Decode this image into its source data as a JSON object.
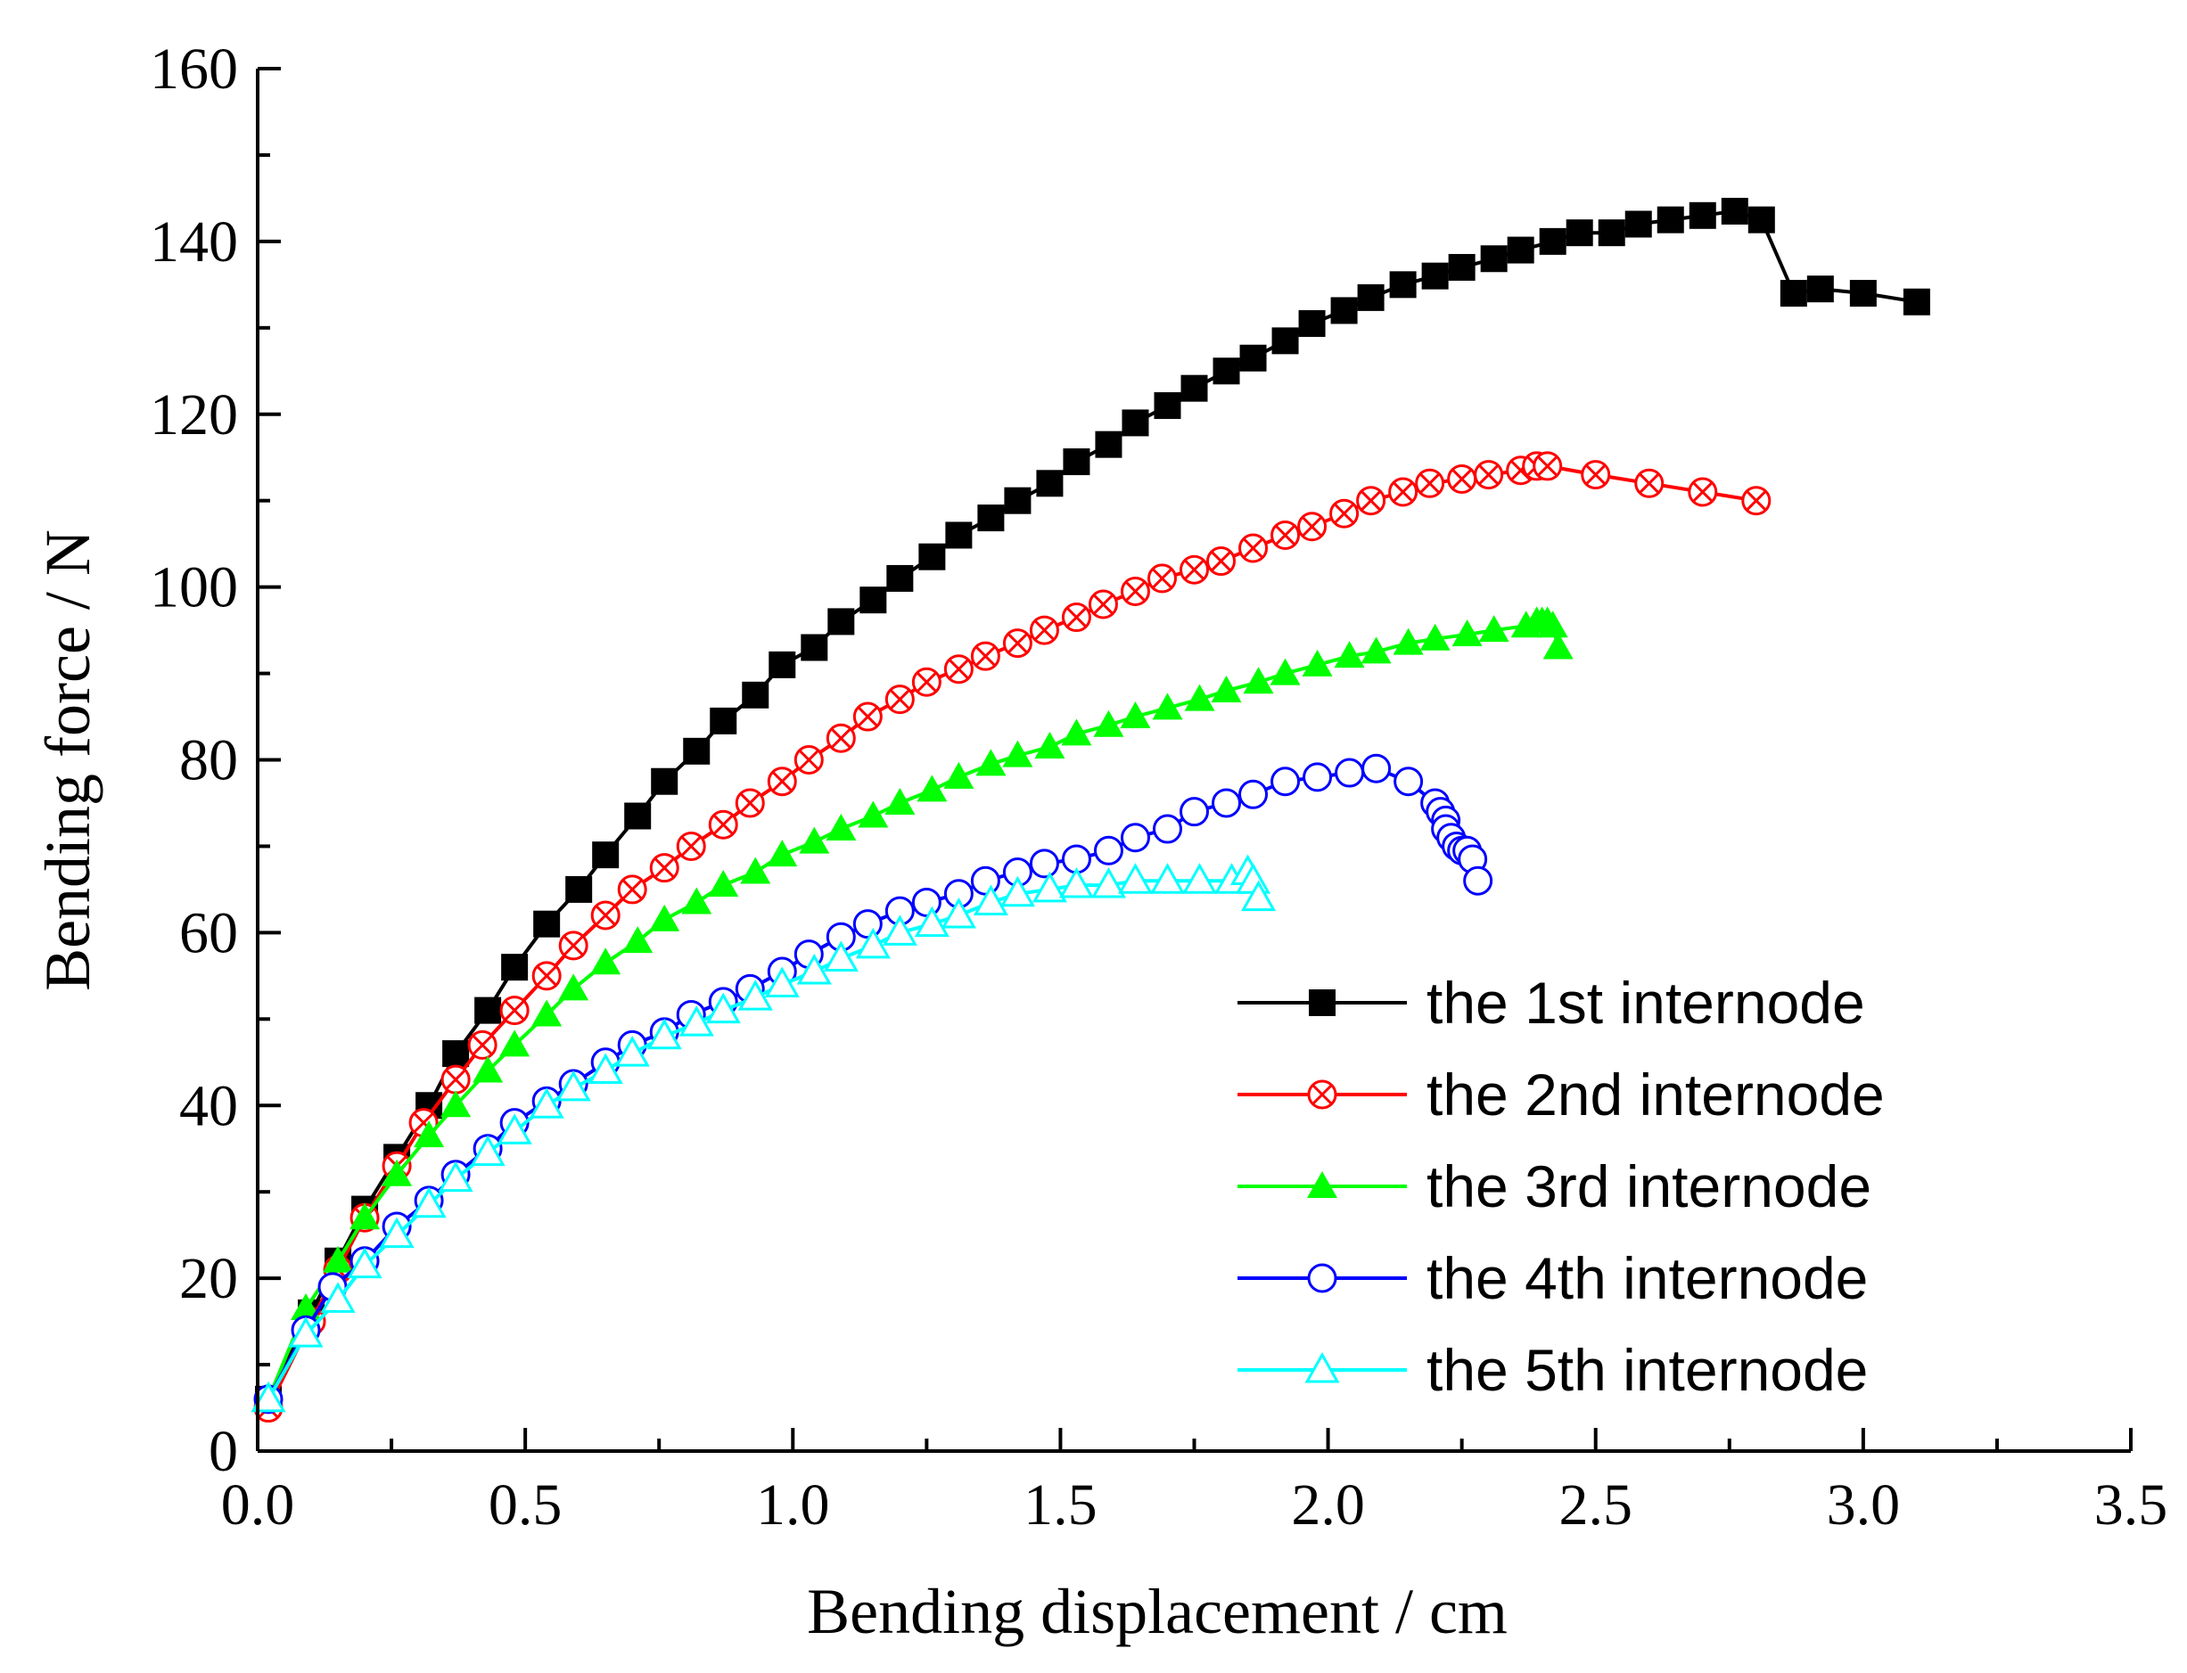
{
  "chart_data": {
    "type": "line",
    "title": "",
    "xlabel": "Bending displacement / cm",
    "ylabel": "Bending force / N",
    "xlim": [
      0,
      3.5
    ],
    "ylim": [
      0,
      160
    ],
    "xticks": [
      0.0,
      0.5,
      1.0,
      1.5,
      2.0,
      2.5,
      3.0,
      3.5
    ],
    "xtick_labels": [
      "0.0",
      "0.5",
      "1.0",
      "1.5",
      "2.0",
      "2.5",
      "3.0",
      "3.5"
    ],
    "yticks": [
      0,
      20,
      40,
      60,
      80,
      100,
      120,
      140,
      160
    ],
    "ytick_labels": [
      "0",
      "20",
      "40",
      "60",
      "80",
      "100",
      "120",
      "140",
      "160"
    ],
    "grid": false,
    "legend_position": "bottom-right",
    "series": [
      {
        "name": "the 1st internode",
        "color": "#000000",
        "marker": "filled-square",
        "x": [
          0.02,
          0.1,
          0.15,
          0.2,
          0.26,
          0.32,
          0.37,
          0.43,
          0.48,
          0.54,
          0.6,
          0.65,
          0.71,
          0.76,
          0.82,
          0.87,
          0.93,
          0.98,
          1.04,
          1.09,
          1.15,
          1.2,
          1.26,
          1.31,
          1.37,
          1.42,
          1.48,
          1.53,
          1.59,
          1.64,
          1.7,
          1.75,
          1.81,
          1.86,
          1.92,
          1.97,
          2.03,
          2.08,
          2.14,
          2.2,
          2.25,
          2.31,
          2.36,
          2.42,
          2.47,
          2.53,
          2.58,
          2.64,
          2.7,
          2.76,
          2.81,
          2.87,
          2.92,
          3.0,
          3.1
        ],
        "y": [
          6,
          16,
          22,
          28,
          34,
          40,
          46,
          51,
          56,
          61,
          65,
          69,
          73.5,
          77.5,
          81,
          84.5,
          87.5,
          91,
          93,
          96,
          98.5,
          101,
          103.5,
          106,
          108,
          110,
          112,
          114.5,
          116.5,
          119,
          121,
          123,
          125,
          126.5,
          128.5,
          130.5,
          132,
          133.5,
          135,
          136,
          137,
          138,
          139,
          140,
          141,
          141,
          142,
          142.5,
          143,
          143.5,
          142.5,
          134,
          134.5,
          134,
          133
        ]
      },
      {
        "name": "the 2nd internode",
        "color": "#ff0000",
        "marker": "circle-x",
        "x": [
          0.02,
          0.1,
          0.15,
          0.2,
          0.26,
          0.31,
          0.37,
          0.42,
          0.48,
          0.54,
          0.59,
          0.65,
          0.7,
          0.76,
          0.81,
          0.87,
          0.92,
          0.98,
          1.03,
          1.09,
          1.14,
          1.2,
          1.25,
          1.31,
          1.36,
          1.42,
          1.47,
          1.53,
          1.58,
          1.64,
          1.69,
          1.75,
          1.8,
          1.86,
          1.92,
          1.97,
          2.03,
          2.08,
          2.14,
          2.19,
          2.25,
          2.3,
          2.36,
          2.39,
          2.41,
          2.5,
          2.6,
          2.7,
          2.8
        ],
        "y": [
          5,
          15,
          21,
          27,
          33,
          38,
          43,
          47,
          51,
          55,
          58.5,
          62,
          65,
          67.5,
          70,
          72.5,
          75,
          77.5,
          80,
          82.5,
          85,
          87,
          89,
          90.5,
          92,
          93.5,
          95,
          96.5,
          98,
          99.5,
          101,
          102,
          103,
          104.5,
          106,
          107,
          108.5,
          110,
          111,
          112,
          112.5,
          113,
          113.5,
          114,
          114,
          113,
          112,
          111,
          110
        ]
      },
      {
        "name": "the 3rd internode",
        "color": "#00ff00",
        "marker": "filled-triangle",
        "x": [
          0.02,
          0.09,
          0.15,
          0.2,
          0.26,
          0.32,
          0.37,
          0.43,
          0.48,
          0.54,
          0.59,
          0.65,
          0.71,
          0.76,
          0.82,
          0.87,
          0.93,
          0.98,
          1.04,
          1.09,
          1.15,
          1.2,
          1.26,
          1.31,
          1.37,
          1.42,
          1.48,
          1.53,
          1.59,
          1.64,
          1.7,
          1.76,
          1.81,
          1.87,
          1.92,
          1.98,
          2.04,
          2.09,
          2.15,
          2.2,
          2.26,
          2.31,
          2.37,
          2.39,
          2.4,
          2.41,
          2.42,
          2.43
        ],
        "y": [
          6,
          16.5,
          22,
          27,
          32,
          36.5,
          40,
          44,
          47,
          50.5,
          53.5,
          56.5,
          59,
          61.5,
          63.5,
          65.5,
          67,
          69,
          70.5,
          72,
          73.5,
          75,
          76.5,
          78,
          79.5,
          80.5,
          81.5,
          83,
          84,
          85,
          86,
          87,
          88,
          89,
          90,
          91,
          92,
          92.5,
          93.5,
          94,
          94.5,
          95,
          95.5,
          96,
          96,
          96,
          95.5,
          93
        ]
      },
      {
        "name": "the 4th internode",
        "color": "#0000ff",
        "marker": "open-circle",
        "x": [
          0.02,
          0.09,
          0.14,
          0.2,
          0.26,
          0.32,
          0.37,
          0.43,
          0.48,
          0.54,
          0.59,
          0.65,
          0.7,
          0.76,
          0.81,
          0.87,
          0.92,
          0.98,
          1.03,
          1.09,
          1.14,
          1.2,
          1.25,
          1.31,
          1.36,
          1.42,
          1.47,
          1.53,
          1.59,
          1.64,
          1.7,
          1.75,
          1.81,
          1.86,
          1.92,
          1.98,
          2.04,
          2.09,
          2.15,
          2.2,
          2.21,
          2.22,
          2.22,
          2.23,
          2.24,
          2.25,
          2.26,
          2.27,
          2.28
        ],
        "y": [
          6,
          14,
          19,
          22,
          26,
          29,
          32,
          35,
          38,
          40.5,
          42.5,
          45,
          47,
          48.5,
          50.5,
          52,
          53.5,
          55.5,
          57.5,
          59.5,
          61,
          62.5,
          63.5,
          64.5,
          66,
          67,
          68,
          68.5,
          69.5,
          71,
          72,
          74,
          75,
          76,
          77.5,
          78,
          78.5,
          79,
          77.5,
          75,
          74,
          73,
          72,
          71,
          70,
          69.5,
          69.5,
          68.5,
          66
        ]
      },
      {
        "name": "the 5th internode",
        "color": "#00ffff",
        "marker": "open-triangle",
        "x": [
          0.02,
          0.09,
          0.15,
          0.2,
          0.26,
          0.32,
          0.37,
          0.43,
          0.48,
          0.54,
          0.59,
          0.65,
          0.7,
          0.76,
          0.82,
          0.87,
          0.93,
          0.98,
          1.04,
          1.09,
          1.15,
          1.2,
          1.26,
          1.31,
          1.37,
          1.42,
          1.48,
          1.53,
          1.59,
          1.64,
          1.7,
          1.76,
          1.82,
          1.85,
          1.86,
          1.87
        ],
        "y": [
          6,
          13.5,
          17.5,
          21.5,
          25,
          28.5,
          31.5,
          34.5,
          37,
          40,
          42,
          44,
          46,
          48,
          49.5,
          51,
          52.5,
          54,
          55.5,
          57,
          58.5,
          60,
          61,
          62,
          63.5,
          64.5,
          65,
          65.5,
          65.5,
          66,
          66,
          66,
          66,
          67,
          66,
          64
        ]
      }
    ]
  }
}
